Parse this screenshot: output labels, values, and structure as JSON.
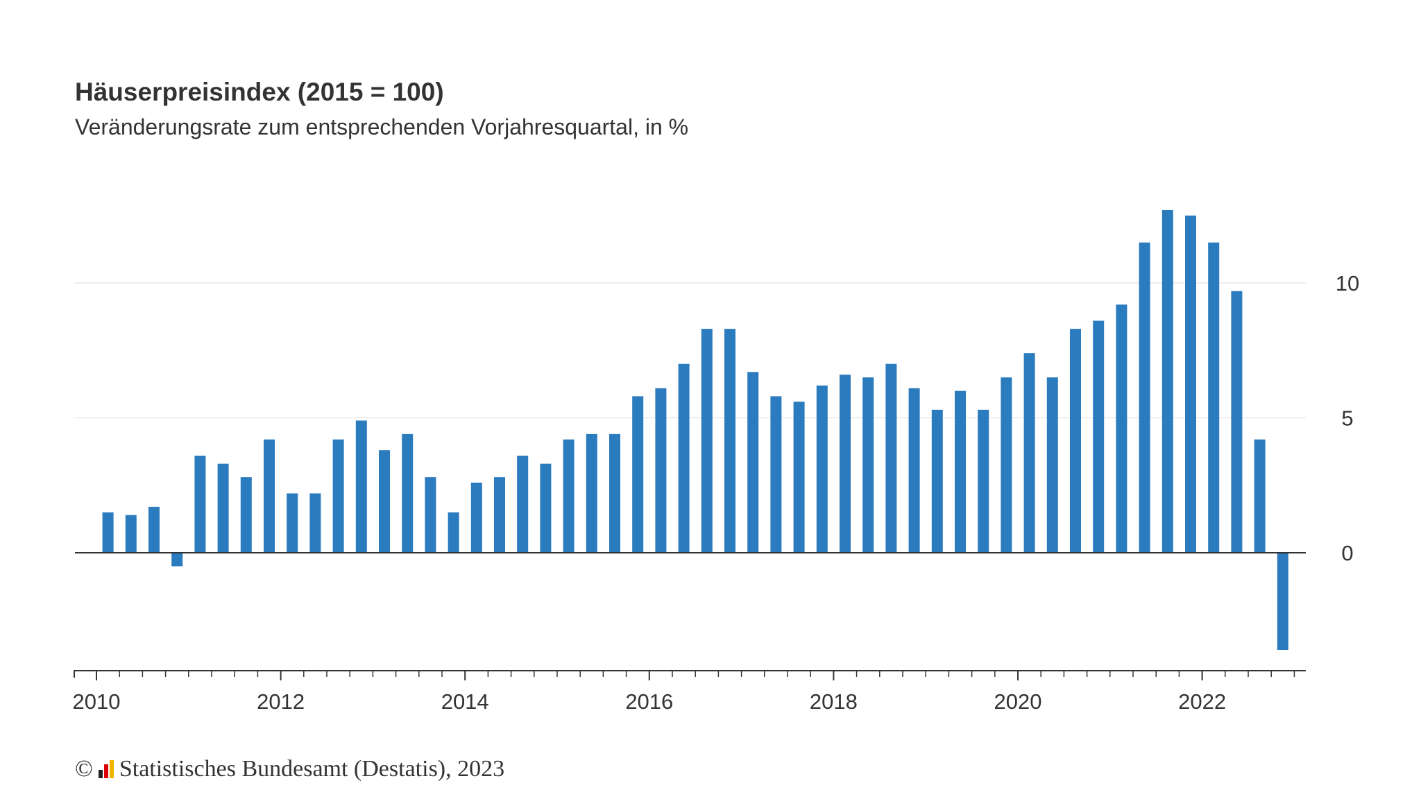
{
  "chart_data": {
    "type": "bar",
    "title": "Häuserpreisindex (2015 = 100)",
    "subtitle": "Veränderungsrate zum entsprechenden Vorjahresquartal, in %",
    "x": [
      "2010 Q1",
      "2010 Q2",
      "2010 Q3",
      "2010 Q4",
      "2011 Q1",
      "2011 Q2",
      "2011 Q3",
      "2011 Q4",
      "2012 Q1",
      "2012 Q2",
      "2012 Q3",
      "2012 Q4",
      "2013 Q1",
      "2013 Q2",
      "2013 Q3",
      "2013 Q4",
      "2014 Q1",
      "2014 Q2",
      "2014 Q3",
      "2014 Q4",
      "2015 Q1",
      "2015 Q2",
      "2015 Q3",
      "2015 Q4",
      "2016 Q1",
      "2016 Q2",
      "2016 Q3",
      "2016 Q4",
      "2017 Q1",
      "2017 Q2",
      "2017 Q3",
      "2017 Q4",
      "2018 Q1",
      "2018 Q2",
      "2018 Q3",
      "2018 Q4",
      "2019 Q1",
      "2019 Q2",
      "2019 Q3",
      "2019 Q4",
      "2020 Q1",
      "2020 Q2",
      "2020 Q3",
      "2020 Q4",
      "2021 Q1",
      "2021 Q2",
      "2021 Q3",
      "2021 Q4",
      "2022 Q1",
      "2022 Q2",
      "2022 Q3",
      "2022 Q4"
    ],
    "values": [
      1.5,
      1.4,
      1.7,
      -0.5,
      3.6,
      3.3,
      2.8,
      4.2,
      2.2,
      2.2,
      4.2,
      4.9,
      3.8,
      4.4,
      2.8,
      1.5,
      2.6,
      2.8,
      3.6,
      3.3,
      4.2,
      4.4,
      4.4,
      5.8,
      6.1,
      7.0,
      8.3,
      8.3,
      6.7,
      5.8,
      5.6,
      6.2,
      6.6,
      6.5,
      7.0,
      6.1,
      5.3,
      6.0,
      5.3,
      6.5,
      7.4,
      6.5,
      8.3,
      8.6,
      9.2,
      11.5,
      12.7,
      12.5,
      11.5,
      9.7,
      4.2,
      -3.6
    ],
    "x_tick_labels": [
      "2010",
      "2012",
      "2014",
      "2016",
      "2018",
      "2020",
      "2022"
    ],
    "y_tick_labels": [
      "0",
      "5",
      "10"
    ],
    "ylim": [
      -4.3,
      13
    ],
    "grid": true,
    "y_axis_side": "right",
    "bar_color": "#2b7bbf"
  },
  "footer": {
    "copyright": "©",
    "source": "Statistisches Bundesamt (Destatis), 2023"
  }
}
